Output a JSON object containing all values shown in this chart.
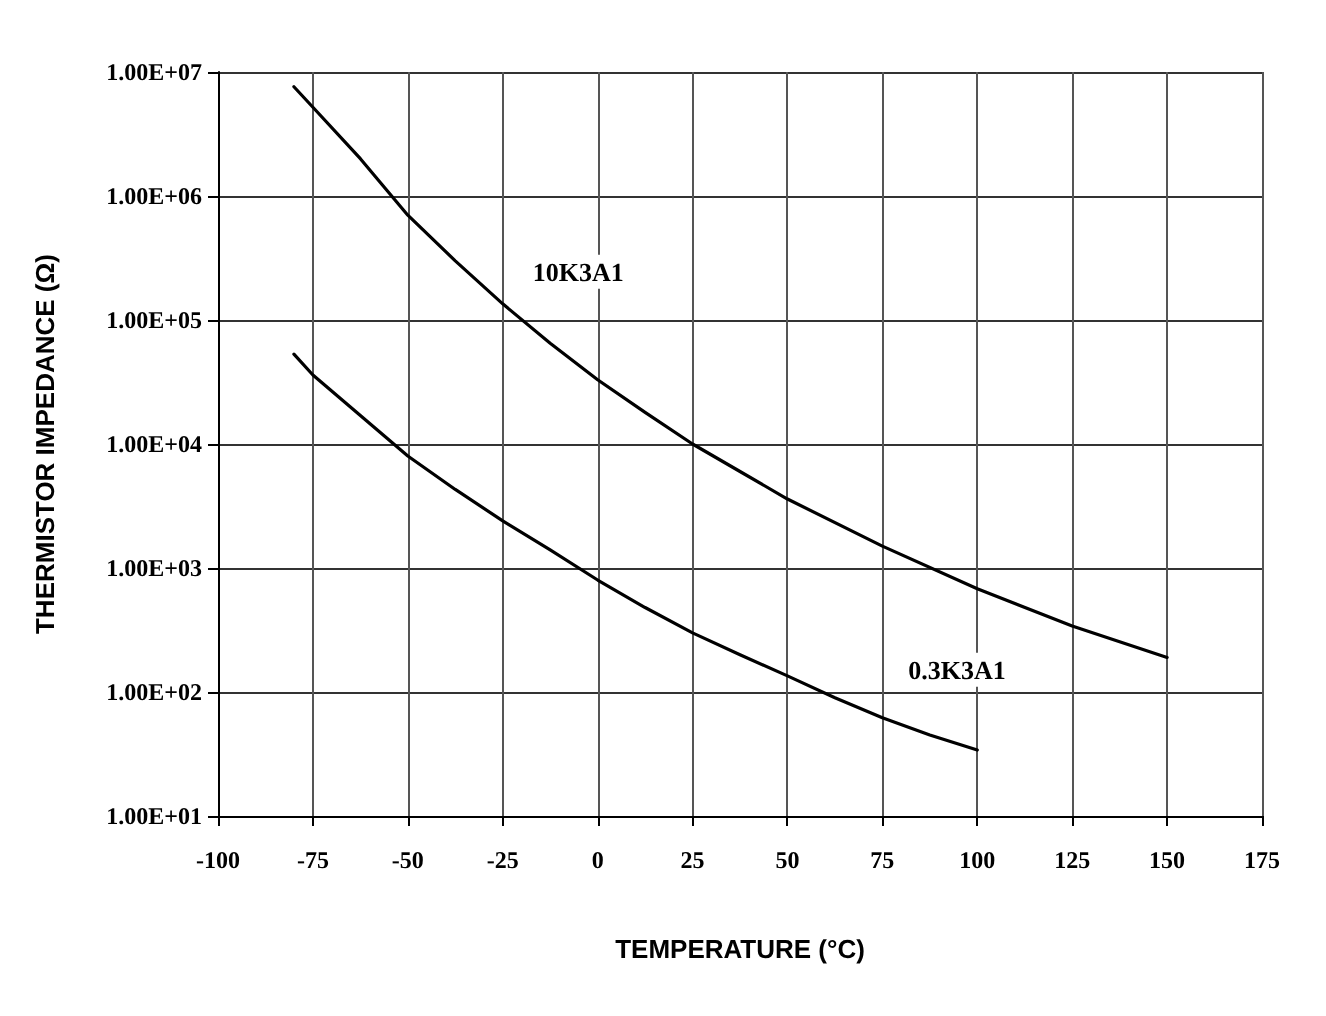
{
  "chart_data": {
    "type": "line",
    "xlabel": "TEMPERATURE (°C)",
    "ylabel": "THERMISTOR IMPEDANCE (Ω)",
    "log": "y",
    "grid": true,
    "marker": "none",
    "line_style": "solid",
    "legend": false,
    "xlim": [
      -100,
      175
    ],
    "xticks": [
      -100,
      -75,
      -50,
      -25,
      0,
      25,
      50,
      75,
      100,
      125,
      150,
      175
    ],
    "ylim": [
      10,
      10000000
    ],
    "yticks": [
      {
        "value": 10,
        "label": "1.00E+01"
      },
      {
        "value": 100,
        "label": "1.00E+02"
      },
      {
        "value": 1000,
        "label": "1.00E+03"
      },
      {
        "value": 10000,
        "label": "1.00E+04"
      },
      {
        "value": 100000,
        "label": "1.00E+05"
      },
      {
        "value": 1000000,
        "label": "1.00E+06"
      },
      {
        "value": 10000000,
        "label": "1.00E+07"
      }
    ],
    "series": [
      {
        "name": "10K3A1",
        "color": "#000000",
        "x": [
          -80,
          -75,
          -62.5,
          -50,
          -37.5,
          -25,
          -12.5,
          0,
          12.5,
          25,
          37.5,
          50,
          75,
          100,
          125,
          150
        ],
        "values": [
          7600000,
          5200000,
          2000000,
          700000,
          300000,
          135000,
          65000,
          33000,
          18000,
          10000,
          6000,
          3600,
          1500,
          680,
          340,
          190
        ]
      },
      {
        "name": "0.3K3A1",
        "color": "#000000",
        "x": [
          -80,
          -75,
          -62.5,
          -50,
          -37.5,
          -25,
          -12.5,
          0,
          12.5,
          25,
          37.5,
          50,
          62.5,
          75,
          87.5,
          100
        ],
        "values": [
          53000,
          36000,
          17000,
          8000,
          4300,
          2400,
          1400,
          800,
          480,
          300,
          200,
          135,
          90,
          62,
          45,
          34
        ]
      }
    ]
  }
}
